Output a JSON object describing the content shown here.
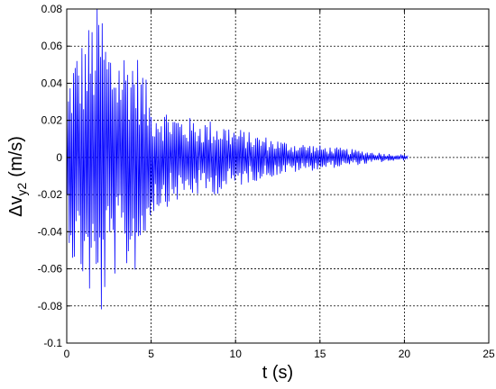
{
  "chart_data": {
    "type": "line",
    "title": "",
    "xlabel": "t (s)",
    "ylabel_main": "Δv",
    "ylabel_sub": "y2",
    "ylabel_unit": "(m/s)",
    "xlim": [
      0,
      25
    ],
    "ylim": [
      -0.1,
      0.08
    ],
    "x_ticks": [
      0,
      5,
      10,
      15,
      20,
      25
    ],
    "y_ticks": [
      -0.1,
      -0.08,
      -0.06,
      -0.04,
      -0.02,
      0,
      0.02,
      0.04,
      0.06,
      0.08
    ],
    "x_tick_labels": [
      "0",
      "5",
      "10",
      "15",
      "20",
      "25"
    ],
    "y_tick_labels": [
      "-0.1",
      "-0.08",
      "-0.06",
      "-0.04",
      "-0.02",
      "0",
      "0.02",
      "0.04",
      "0.06",
      "0.08"
    ],
    "grid": true,
    "series": [
      {
        "color": "#0000ff",
        "sample_dt": 0.05,
        "x_start": 0,
        "x_end": 20.2,
        "envelope": [
          [
            0.0,
            0.03
          ],
          [
            0.3,
            0.05
          ],
          [
            0.6,
            0.055
          ],
          [
            1.0,
            0.06
          ],
          [
            1.5,
            0.07
          ],
          [
            2.0,
            0.08
          ],
          [
            2.4,
            0.06
          ],
          [
            3.0,
            0.055
          ],
          [
            3.5,
            0.055
          ],
          [
            4.0,
            0.055
          ],
          [
            4.5,
            0.045
          ],
          [
            5.0,
            0.028
          ],
          [
            6.0,
            0.024
          ],
          [
            7.0,
            0.02
          ],
          [
            8.0,
            0.019
          ],
          [
            9.0,
            0.018
          ],
          [
            10.0,
            0.015
          ],
          [
            11.0,
            0.012
          ],
          [
            12.0,
            0.01
          ],
          [
            13.0,
            0.008
          ],
          [
            14.0,
            0.007
          ],
          [
            15.0,
            0.006
          ],
          [
            16.0,
            0.005
          ],
          [
            17.0,
            0.004
          ],
          [
            18.0,
            0.003
          ],
          [
            19.0,
            0.002
          ],
          [
            20.0,
            0.0015
          ],
          [
            20.2,
            0.001
          ]
        ]
      }
    ]
  }
}
